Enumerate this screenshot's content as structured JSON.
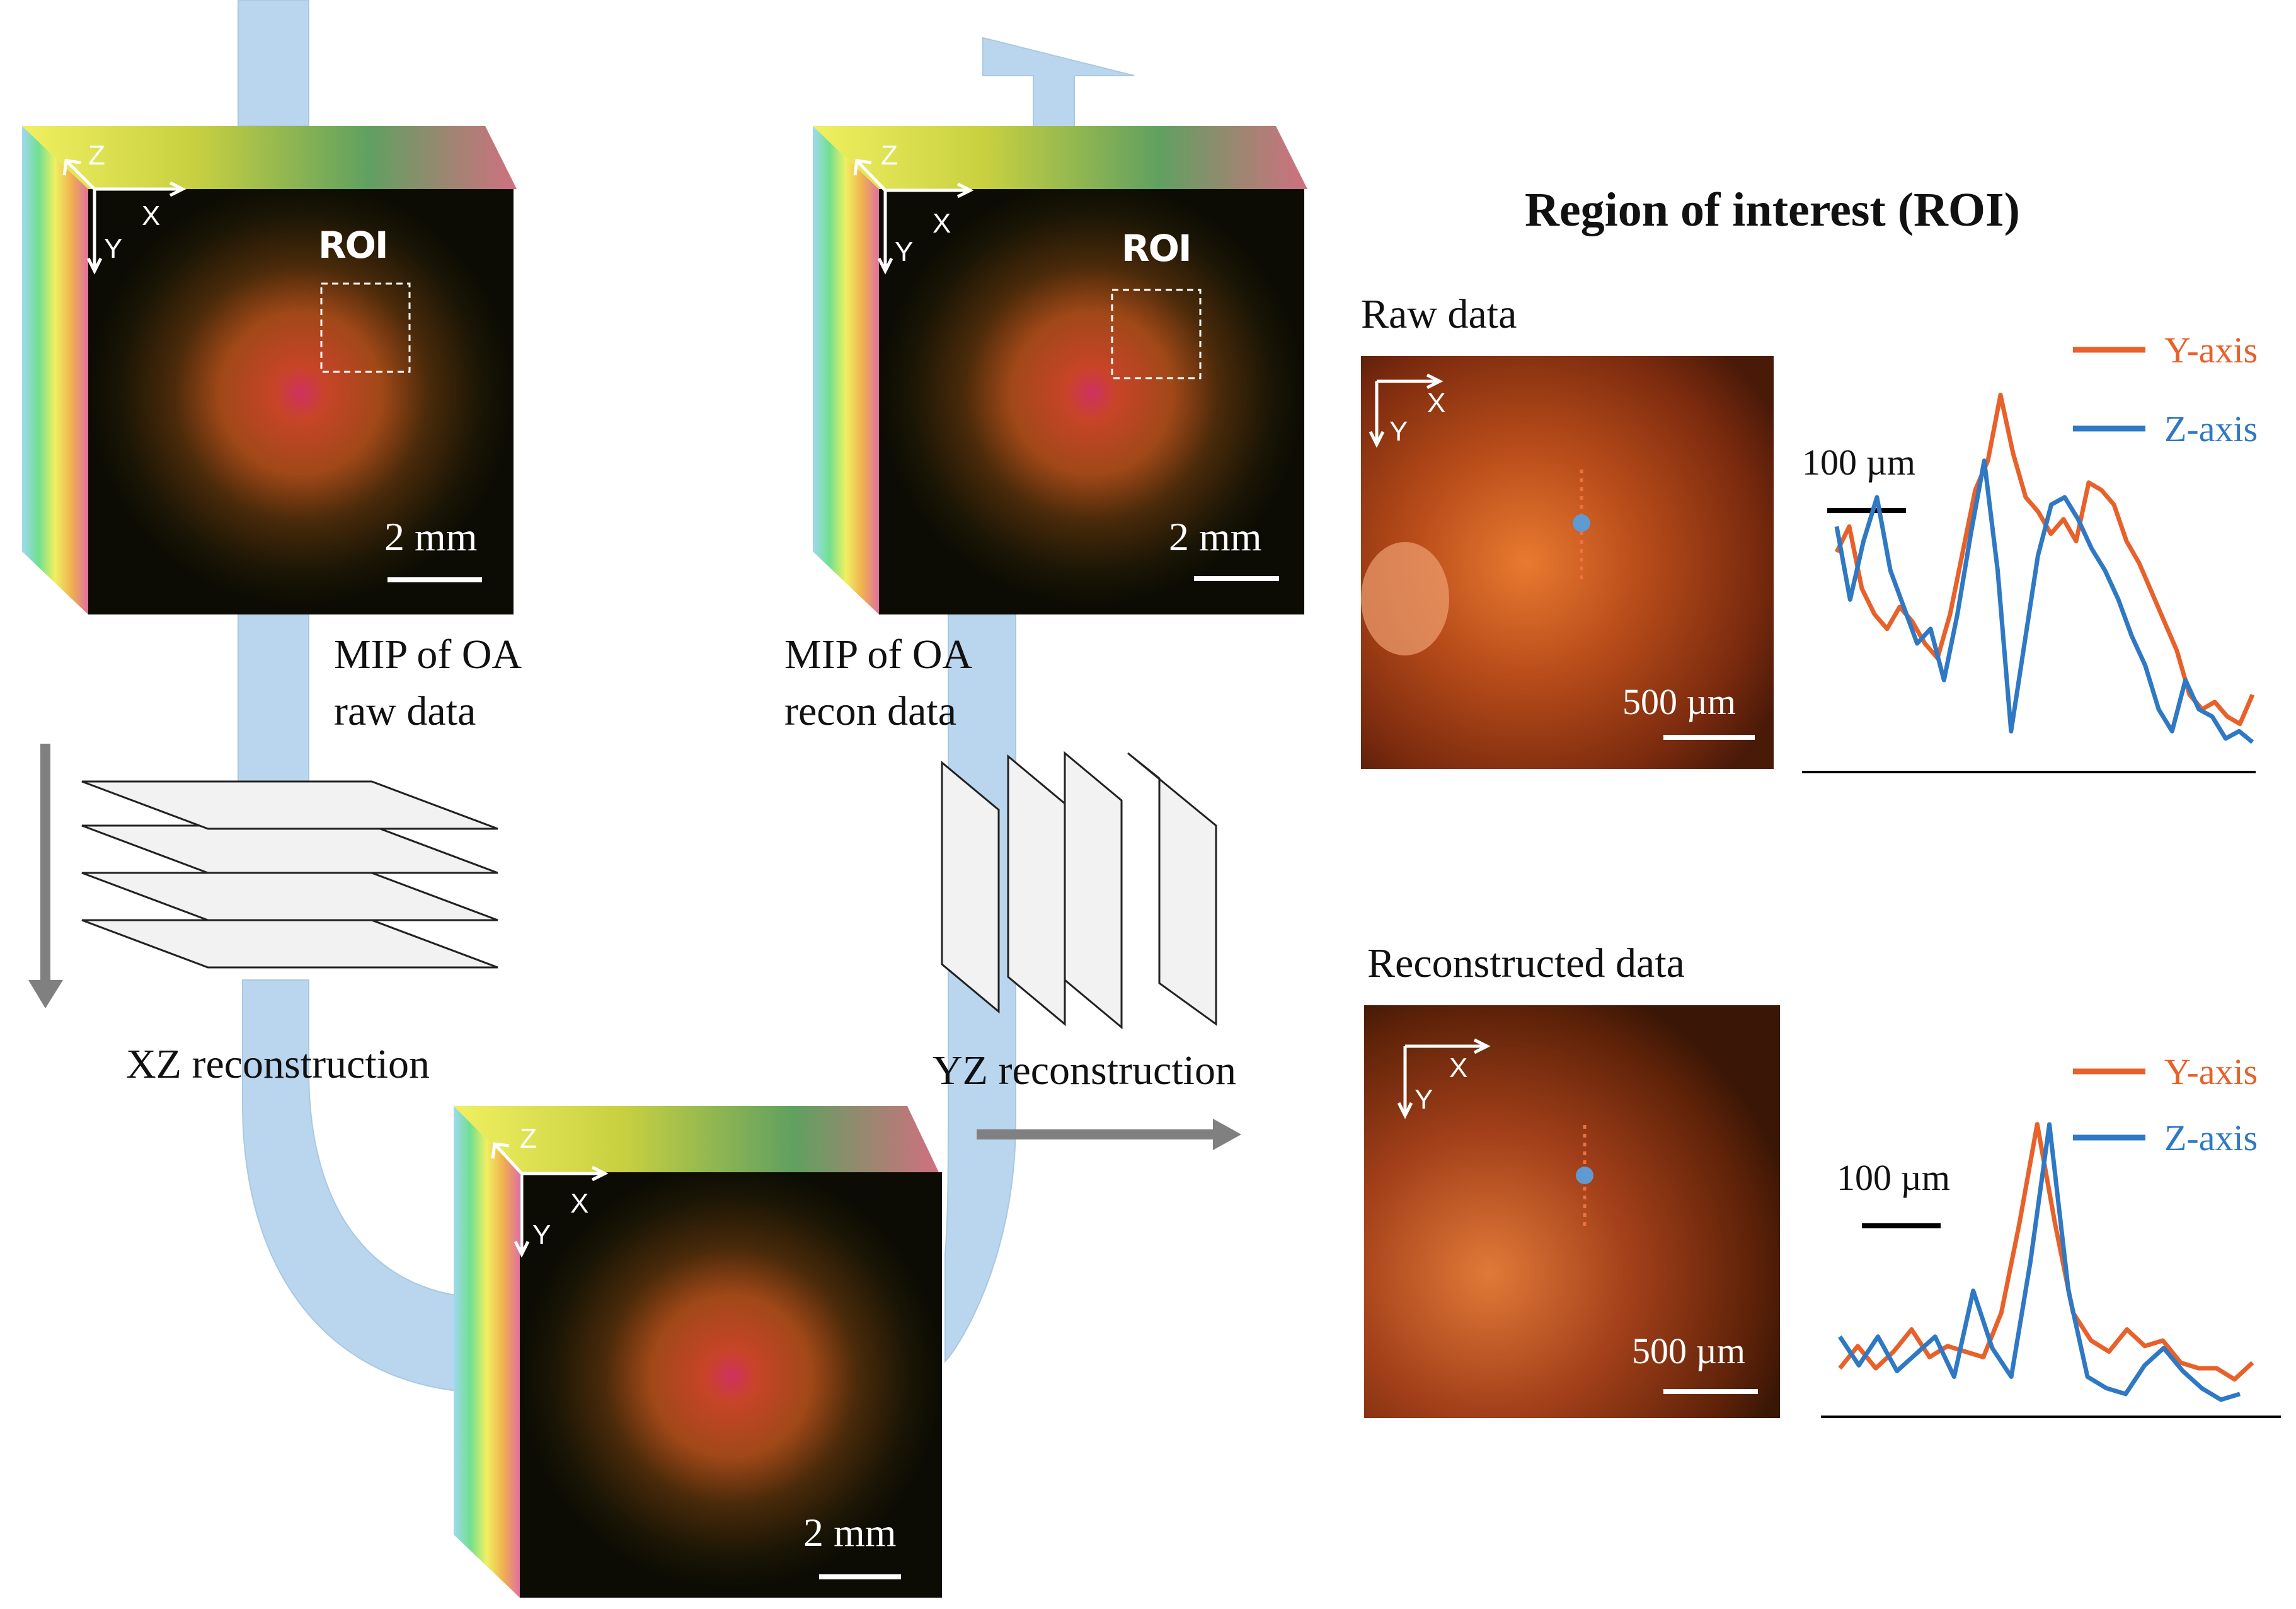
{
  "title": "Region of interest (ROI)",
  "labels": {
    "mip_raw": [
      "MIP of OA",
      "raw data"
    ],
    "mip_recon": [
      "MIP of OA",
      "recon data"
    ],
    "xz": "XZ reconstruction",
    "yz": "YZ reconstruction",
    "raw_data": "Raw data",
    "recon_data": "Reconstructed data",
    "roi_tag": "ROI"
  },
  "axes": {
    "x": "X",
    "y": "Y",
    "z": "Z"
  },
  "scale_bars": {
    "cube": "2 mm",
    "roi_image": "500 µm",
    "profile": "100 µm"
  },
  "legend": {
    "y_axis": "Y-axis",
    "z_axis": "Z-axis"
  },
  "colors": {
    "y_axis": "#e8602a",
    "z_axis": "#2f78c4",
    "flow": "#b9d6ee",
    "arrow": "#808080"
  },
  "profiles": {
    "raw": {
      "y_axis": [
        0.55,
        0.62,
        0.45,
        0.38,
        0.34,
        0.4,
        0.36,
        0.3,
        0.26,
        0.38,
        0.55,
        0.72,
        0.8,
        0.98,
        0.82,
        0.7,
        0.66,
        0.6,
        0.64,
        0.58,
        0.74,
        0.72,
        0.68,
        0.58,
        0.52,
        0.44,
        0.36,
        0.28,
        0.16,
        0.12,
        0.14,
        0.1,
        0.08,
        0.16
      ],
      "z_axis": [
        0.62,
        0.42,
        0.58,
        0.7,
        0.5,
        0.4,
        0.3,
        0.34,
        0.2,
        0.38,
        0.6,
        0.8,
        0.5,
        0.06,
        0.3,
        0.54,
        0.68,
        0.7,
        0.64,
        0.56,
        0.5,
        0.42,
        0.32,
        0.24,
        0.12,
        0.06,
        0.2,
        0.12,
        0.1,
        0.04,
        0.06,
        0.03
      ]
    },
    "recon": {
      "y_axis": [
        0.1,
        0.18,
        0.1,
        0.16,
        0.24,
        0.14,
        0.18,
        0.16,
        0.14,
        0.3,
        0.62,
        0.98,
        0.62,
        0.3,
        0.2,
        0.16,
        0.24,
        0.18,
        0.2,
        0.12,
        0.1,
        0.1,
        0.06,
        0.12
      ],
      "z_axis": [
        0.24,
        0.14,
        0.24,
        0.12,
        0.18,
        0.24,
        0.1,
        0.4,
        0.2,
        0.1,
        0.5,
        0.98,
        0.4,
        0.1,
        0.06,
        0.04,
        0.14,
        0.2,
        0.12,
        0.06,
        0.02,
        0.04
      ]
    }
  }
}
